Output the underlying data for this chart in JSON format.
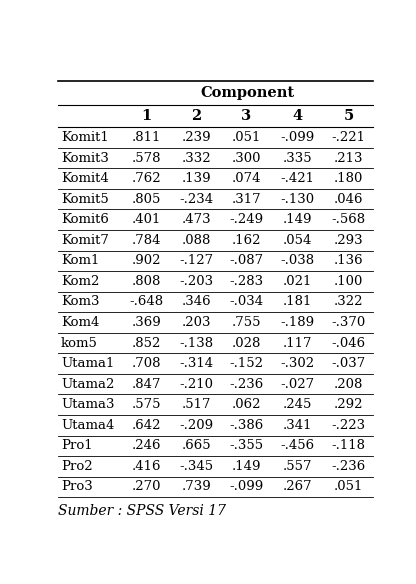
{
  "title": "Component",
  "columns": [
    "",
    "1",
    "2",
    "3",
    "4",
    "5"
  ],
  "rows": [
    [
      "Komit1",
      ".811",
      ".239",
      ".051",
      "-.099",
      "-.221"
    ],
    [
      "Komit3",
      ".578",
      ".332",
      ".300",
      ".335",
      ".213"
    ],
    [
      "Komit4",
      ".762",
      ".139",
      ".074",
      "-.421",
      ".180"
    ],
    [
      "Komit5",
      ".805",
      "-.234",
      ".317",
      "-.130",
      ".046"
    ],
    [
      "Komit6",
      ".401",
      ".473",
      "-.249",
      ".149",
      "-.568"
    ],
    [
      "Komit7",
      ".784",
      ".088",
      ".162",
      ".054",
      ".293"
    ],
    [
      "Kom1",
      ".902",
      "-.127",
      "-.087",
      "-.038",
      ".136"
    ],
    [
      "Kom2",
      ".808",
      "-.203",
      "-.283",
      ".021",
      ".100"
    ],
    [
      "Kom3",
      "-.648",
      ".346",
      "-.034",
      ".181",
      ".322"
    ],
    [
      "Kom4",
      ".369",
      ".203",
      ".755",
      "-.189",
      "-.370"
    ],
    [
      "kom5",
      ".852",
      "-.138",
      ".028",
      ".117",
      "-.046"
    ],
    [
      "Utama1",
      ".708",
      "-.314",
      "-.152",
      "-.302",
      "-.037"
    ],
    [
      "Utama2",
      ".847",
      "-.210",
      "-.236",
      "-.027",
      ".208"
    ],
    [
      "Utama3",
      ".575",
      ".517",
      ".062",
      ".245",
      ".292"
    ],
    [
      "Utama4",
      ".642",
      "-.209",
      "-.386",
      ".341",
      "-.223"
    ],
    [
      "Pro1",
      ".246",
      ".665",
      "-.355",
      "-.456",
      "-.118"
    ],
    [
      "Pro2",
      ".416",
      "-.345",
      ".149",
      ".557",
      "-.236"
    ],
    [
      "Pro3",
      ".270",
      ".739",
      "-.099",
      ".267",
      ".051"
    ]
  ],
  "footer": "Sumber : SPSS Versi 17",
  "bg_color": "#ffffff",
  "text_color": "#000000",
  "header_fontsize": 10.5,
  "data_fontsize": 9.5,
  "footer_fontsize": 10
}
